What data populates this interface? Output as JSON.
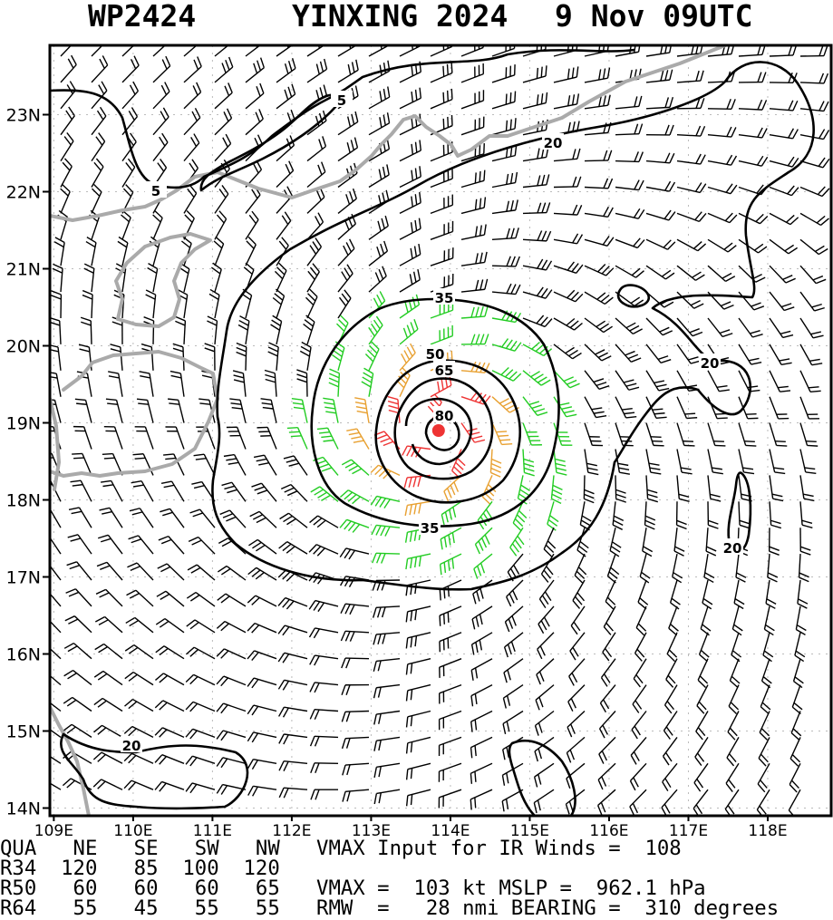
{
  "header": {
    "storm_id": "WP2424",
    "storm_name_year": "YINXING 2024",
    "datetime": "9 Nov 09UTC"
  },
  "map": {
    "lon_range": [
      108.95,
      118.8
    ],
    "lat_range": [
      13.9,
      23.9
    ],
    "lat_labels": [
      "14N",
      "15N",
      "16N",
      "17N",
      "18N",
      "19N",
      "20N",
      "21N",
      "22N",
      "23N"
    ],
    "lon_labels": [
      "109E",
      "110E",
      "111E",
      "112E",
      "113E",
      "114E",
      "115E",
      "116E",
      "117E",
      "118E"
    ],
    "storm_center": {
      "lon": 113.85,
      "lat": 18.9
    },
    "contour_labels": [
      "5",
      "5",
      "20",
      "20",
      "20",
      "20",
      "35",
      "35",
      "50",
      "65",
      "80"
    ],
    "colors": {
      "coastline": "#aaaaaa",
      "contour": "#000000",
      "wind_lt34": "#000000",
      "wind_34": "#22cc22",
      "wind_50": "#e8a030",
      "wind_64": "#ee3333",
      "center": "#ee3333",
      "grid": "#bbbbbb"
    }
  },
  "info": {
    "row1": "QUA   NE   SE   SW   NW   VMAX Input for IR Winds =  108",
    "row2": "R34  120   85  100  120",
    "row3": "R50   60   60   60   65   VMAX =  103 kt MSLP =  962.1 hPa",
    "row4": "R64   55   45   55   55   RMW  =   28 nmi BEARING =  310 degrees"
  }
}
